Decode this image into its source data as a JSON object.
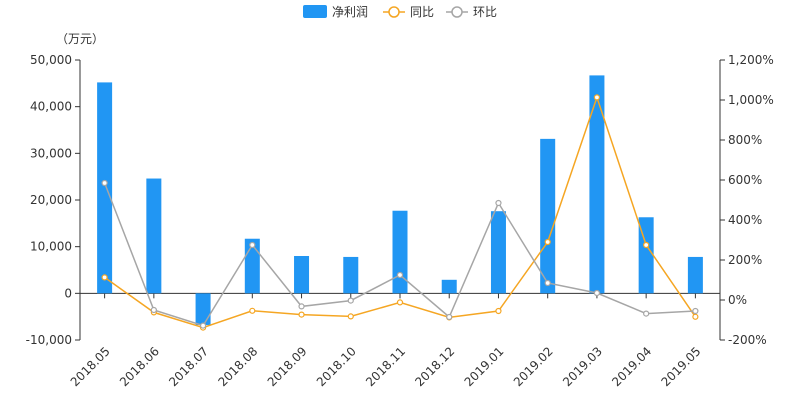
{
  "chart_data": {
    "type": "bar",
    "categories": [
      "2018.05",
      "2018.06",
      "2018.07",
      "2018.08",
      "2018.09",
      "2018.10",
      "2018.11",
      "2018.12",
      "2019.01",
      "2019.02",
      "2019.03",
      "2019.04",
      "2019.05"
    ],
    "y_unit_label": "（万元）",
    "y_left": {
      "ylim": [
        -10000,
        50000
      ],
      "ticks": [
        "-10,000",
        "0",
        "10,000",
        "20,000",
        "30,000",
        "40,000",
        "50,000"
      ],
      "tick_values": [
        -10000,
        0,
        10000,
        20000,
        30000,
        40000,
        50000
      ]
    },
    "y_right": {
      "ylim": [
        -200,
        1200
      ],
      "ticks": [
        "-200%",
        "0%",
        "200%",
        "400%",
        "600%",
        "800%",
        "1,000%",
        "1,200%"
      ],
      "tick_values": [
        -200,
        0,
        200,
        400,
        600,
        800,
        1000,
        1200
      ]
    },
    "series": [
      {
        "name": "净利润",
        "kind": "bar",
        "axis": "left",
        "color": "#2196F3",
        "values": [
          45200,
          24600,
          -6800,
          11700,
          8000,
          7800,
          17700,
          2900,
          17600,
          33100,
          46700,
          16300,
          7800
        ]
      },
      {
        "name": "同比",
        "kind": "line",
        "axis": "right",
        "color": "#F5A623",
        "values": [
          113,
          -62,
          -138,
          -54,
          -73,
          -82,
          -12,
          -87,
          -55,
          290,
          1013,
          275,
          -84
        ]
      },
      {
        "name": "环比",
        "kind": "line",
        "axis": "right",
        "color": "#A6A6A6",
        "values": [
          585,
          -50,
          -128,
          275,
          -32,
          -3,
          125,
          -85,
          485,
          85,
          35,
          -68,
          -55
        ]
      }
    ],
    "legend_position": "top-center",
    "grid": false
  }
}
